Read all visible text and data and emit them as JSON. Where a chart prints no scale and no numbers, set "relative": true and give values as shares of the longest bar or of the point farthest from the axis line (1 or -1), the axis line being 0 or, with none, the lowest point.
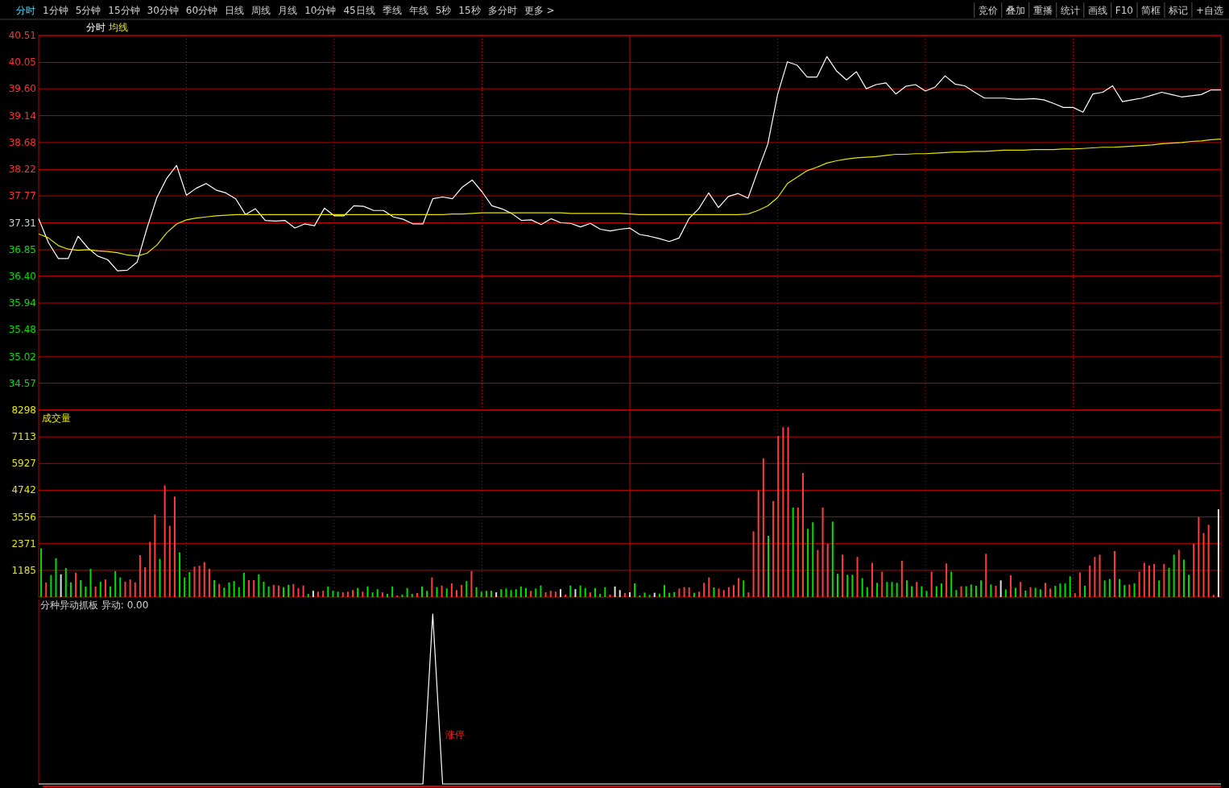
{
  "chart_data": [
    {
      "type": "line",
      "annotations": [
        "分时",
        "1分钟",
        "5分钟",
        "15分钟",
        "30分钟",
        "60分钟",
        "日线",
        "周线",
        "月线",
        "10分钟",
        "45日线",
        "季线",
        "年线",
        "5秒",
        "15秒",
        "多分时",
        "更多 >",
        "竞价",
        "叠加",
        "重播",
        "统计",
        "画线",
        "F10",
        "简框",
        "标记",
        "+自选"
      ],
      "categories": [
        null,
        null,
        null,
        null,
        null,
        null,
        null,
        null,
        null,
        null,
        null,
        null,
        null,
        null,
        null,
        null,
        null,
        null,
        null,
        null,
        null,
        null,
        null,
        null,
        null,
        null,
        null,
        null,
        null,
        null,
        null,
        null,
        null,
        null,
        null,
        null,
        null,
        null,
        null,
        null,
        null,
        null,
        null,
        null,
        null,
        null,
        null,
        null,
        null,
        null,
        null,
        null,
        null,
        null,
        null,
        null,
        null,
        null,
        null,
        null,
        null,
        null,
        null,
        null,
        null,
        null,
        null,
        null,
        null,
        null,
        null,
        null,
        null,
        null,
        null,
        null,
        null,
        null,
        null,
        null,
        null,
        null,
        null,
        null,
        null,
        null,
        null,
        null,
        null,
        null,
        null,
        null,
        null,
        null,
        null,
        null,
        null,
        null,
        null,
        null,
        null,
        null,
        null,
        null,
        null,
        null,
        null,
        null,
        null,
        null,
        null,
        null,
        null,
        null,
        null,
        null,
        null,
        null,
        null,
        null,
        null
      ],
      "ylim": [
        34.11,
        40.51
      ],
      "yticks": [
        34.57,
        35.02,
        35.48,
        35.94,
        {
          "value": 36.4,
          "label": "36.40"
        },
        36.85,
        37.31,
        37.77,
        38.22,
        38.68,
        39.14,
        {
          "value": 39.6,
          "label": "39.60"
        },
        40.05,
        40.51
      ],
      "grid": true,
      "tick_labels": "y",
      "series": [
        {
          "name": "分时",
          "color": "#ffffff",
          "values": [
            37.38,
            36.97,
            36.7,
            36.7,
            37.08,
            36.88,
            36.74,
            36.68,
            36.49,
            36.5,
            36.64,
            37.22,
            37.74,
            38.07,
            38.29,
            37.78,
            37.9,
            37.98,
            37.87,
            37.82,
            37.72,
            37.45,
            37.55,
            37.35,
            37.34,
            37.35,
            37.22,
            37.29,
            37.26,
            37.56,
            37.43,
            37.43,
            37.6,
            37.59,
            37.52,
            37.52,
            37.41,
            37.37,
            37.29,
            37.29,
            37.72,
            37.75,
            37.72,
            37.92,
            38.04,
            37.84,
            37.6,
            37.55,
            37.47,
            37.35,
            37.36,
            37.28,
            37.38,
            37.31,
            37.3,
            37.24,
            37.3,
            37.2,
            37.17,
            37.2,
            37.22,
            37.11,
            37.08,
            37.04,
            36.99,
            37.05,
            37.38,
            37.55,
            37.82,
            37.57,
            37.76,
            37.81,
            37.73,
            38.2,
            38.65,
            39.5,
            40.06,
            40.0,
            39.8,
            39.8,
            40.15,
            39.9,
            39.75,
            39.89,
            39.6,
            39.67,
            39.7,
            39.51,
            39.64,
            39.67,
            39.56,
            39.63,
            39.82,
            39.68,
            39.65,
            39.54,
            39.44,
            39.44,
            39.44,
            39.42,
            39.42,
            39.43,
            39.41,
            39.35,
            39.28,
            39.28,
            39.2,
            39.51,
            39.54,
            39.65,
            39.38,
            39.41,
            39.44,
            39.49,
            39.54,
            39.5,
            39.46,
            39.48,
            39.5,
            39.58,
            39.58
          ]
        },
        {
          "name": "均线",
          "color": "#e6e600",
          "values": [
            37.12,
            37.05,
            36.92,
            36.86,
            36.84,
            36.85,
            36.83,
            36.82,
            36.8,
            36.76,
            36.74,
            36.79,
            36.93,
            37.14,
            37.29,
            37.36,
            37.39,
            37.41,
            37.43,
            37.44,
            37.45,
            37.45,
            37.45,
            37.45,
            37.45,
            37.45,
            37.45,
            37.45,
            37.45,
            37.45,
            37.45,
            37.45,
            37.45,
            37.45,
            37.45,
            37.45,
            37.45,
            37.45,
            37.45,
            37.45,
            37.45,
            37.45,
            37.46,
            37.46,
            37.47,
            37.48,
            37.48,
            37.48,
            37.48,
            37.48,
            37.48,
            37.48,
            37.48,
            37.48,
            37.47,
            37.47,
            37.47,
            37.47,
            37.47,
            37.47,
            37.46,
            37.45,
            37.45,
            37.45,
            37.45,
            37.45,
            37.45,
            37.45,
            37.45,
            37.45,
            37.45,
            37.45,
            37.46,
            37.52,
            37.6,
            37.74,
            37.98,
            38.09,
            38.2,
            38.26,
            38.33,
            38.37,
            38.4,
            38.42,
            38.43,
            38.44,
            38.46,
            38.48,
            38.48,
            38.49,
            38.49,
            38.5,
            38.51,
            38.52,
            38.52,
            38.53,
            38.53,
            38.54,
            38.55,
            38.55,
            38.55,
            38.56,
            38.56,
            38.56,
            38.57,
            38.57,
            38.58,
            38.59,
            38.6,
            38.6,
            38.61,
            38.62,
            38.63,
            38.64,
            38.66,
            38.67,
            38.68,
            38.7,
            38.71,
            38.73,
            38.74
          ]
        }
      ]
    },
    {
      "type": "bar",
      "title": "成交量",
      "ylim": [
        0,
        8298
      ],
      "yticks": [
        1185,
        2371,
        3556,
        4742,
        5927,
        7113,
        8298
      ],
      "grid": true,
      "categories": [
        null,
        null,
        null,
        null,
        null,
        null,
        null,
        null,
        null,
        null,
        null,
        null,
        null,
        null,
        null,
        null,
        null,
        null,
        null,
        null,
        null,
        null,
        null,
        null,
        null,
        null,
        null,
        null,
        null,
        null,
        null,
        null,
        null,
        null,
        null,
        null,
        null,
        null,
        null,
        null,
        null,
        null,
        null,
        null,
        null,
        null,
        null,
        null,
        null,
        null,
        null,
        null,
        null,
        null,
        null,
        null,
        null,
        null,
        null,
        null,
        null,
        null,
        null,
        null,
        null,
        null,
        null,
        null,
        null,
        null,
        null,
        null,
        null,
        null,
        null,
        null,
        null,
        null,
        null,
        null,
        null,
        null,
        null,
        null,
        null,
        null,
        null,
        null,
        null,
        null,
        null,
        null,
        null,
        null,
        null,
        null,
        null,
        null,
        null,
        null,
        null,
        null,
        null,
        null,
        null,
        null,
        null,
        null,
        null,
        null,
        null,
        null,
        null,
        null,
        null,
        null,
        null,
        null,
        null,
        null,
        null,
        null,
        null,
        null,
        null,
        null,
        null,
        null,
        null,
        null,
        null,
        null,
        null,
        null,
        null,
        null,
        null,
        null,
        null,
        null,
        null,
        null,
        null,
        null,
        null,
        null,
        null,
        null,
        null,
        null,
        null,
        null,
        null,
        null,
        null,
        null,
        null,
        null,
        null,
        null,
        null,
        null,
        null,
        null,
        null,
        null,
        null,
        null,
        null,
        null,
        null,
        null,
        null,
        null,
        null,
        null,
        null,
        null,
        null,
        null,
        null,
        null,
        null,
        null,
        null,
        null,
        null,
        null,
        null,
        null,
        null,
        null,
        null,
        null,
        null,
        null,
        null,
        null,
        null,
        null,
        null,
        null,
        null,
        null,
        null,
        null,
        null,
        null,
        null,
        null,
        null,
        null,
        null,
        null,
        null,
        null,
        null,
        null,
        null,
        null,
        null,
        null,
        null,
        null,
        null,
        null,
        null,
        null,
        null,
        null,
        null,
        null,
        null,
        null,
        null,
        null,
        null,
        null,
        null
      ],
      "values": [
        2160,
        650,
        980,
        1720,
        1010,
        1290,
        650,
        1080,
        750,
        470,
        1250,
        470,
        680,
        780,
        470,
        1150,
        870,
        680,
        780,
        650,
        1860,
        1320,
        2450,
        3660,
        1690,
        4960,
        3160,
        4460,
        1980,
        870,
        1110,
        1350,
        1390,
        1550,
        1250,
        750,
        580,
        420,
        650,
        710,
        440,
        1080,
        750,
        750,
        1010,
        680,
        470,
        540,
        510,
        440,
        540,
        580,
        400,
        510,
        140,
        280,
        240,
        280,
        470,
        280,
        240,
        210,
        240,
        310,
        400,
        240,
        470,
        210,
        350,
        210,
        140,
        470,
        70,
        110,
        400,
        140,
        180,
        470,
        280,
        870,
        440,
        510,
        380,
        610,
        310,
        540,
        710,
        1150,
        440,
        240,
        280,
        280,
        210,
        350,
        380,
        310,
        350,
        470,
        400,
        280,
        380,
        510,
        210,
        280,
        240,
        350,
        110,
        510,
        350,
        510,
        400,
        210,
        400,
        140,
        440,
        110,
        470,
        310,
        180,
        210,
        610,
        70,
        200,
        100,
        190,
        150,
        530,
        190,
        220,
        380,
        440,
        430,
        190,
        240,
        630,
        870,
        430,
        380,
        310,
        440,
        530,
        840,
        740,
        210,
        2920,
        4740,
        6160,
        2720,
        4260,
        7150,
        7540,
        7540,
        3970,
        3970,
        5510,
        3030,
        3320,
        2090,
        3970,
        2360,
        3350,
        1030,
        1880,
        990,
        990,
        1780,
        840,
        440,
        1520,
        630,
        1130,
        670,
        670,
        630,
        1610,
        740,
        480,
        670,
        480,
        270,
        1130,
        480,
        600,
        1490,
        1130,
        310,
        480,
        480,
        560,
        500,
        740,
        1920,
        560,
        500,
        740,
        340,
        970,
        410,
        670,
        290,
        440,
        410,
        340,
        630,
        380,
        500,
        600,
        600,
        920,
        170,
        1090,
        500,
        1400,
        1780,
        1880,
        740,
        800,
        2040,
        800,
        530,
        560,
        600,
        1130,
        1520,
        1400,
        1470,
        740,
        1470,
        1300,
        1880,
        2100,
        1660,
        990,
        2360,
        3550,
        2840,
        3210,
        100,
        3900
      ],
      "colors": [
        "#00e000",
        "#ff3c3c",
        "#00e000",
        "#00e000",
        "#e0e0e0",
        "#00e000",
        "#00e000",
        "#ff3c3c",
        "#00e000",
        "#00e000",
        "#00e000",
        "#ff3c3c",
        "#00e000",
        "#ff3c3c",
        "#00e000",
        "#00e000",
        "#00e000",
        "#ff3c3c",
        "#ff3c3c",
        "#ff3c3c",
        "#ff3c3c",
        "#ff3c3c",
        "#ff3c3c",
        "#ff3c3c",
        "#00e000",
        "#ff3c3c",
        "#ff3c3c",
        "#ff3c3c",
        "#00e000",
        "#00e000",
        "#00e000",
        "#ff3c3c",
        "#ff3c3c",
        "#ff3c3c",
        "#ff3c3c",
        "#00e000",
        "#ff3c3c",
        "#00e000",
        "#00e000",
        "#00e000",
        "#00e000",
        "#00e000",
        "#ff3c3c",
        "#ff3c3c",
        "#00e000",
        "#00e000",
        "#00e000",
        "#ff3c3c",
        "#ff3c3c",
        "#00e000",
        "#00e000",
        "#ff3c3c",
        "#ff3c3c",
        "#ff3c3c",
        "#00e000",
        "#e0e0e0",
        "#ff3c3c",
        "#ff3c3c",
        "#00e000",
        "#00e000",
        "#00e000",
        "#ff3c3c",
        "#ff3c3c",
        "#ff3c3c",
        "#00e000",
        "#ff3c3c",
        "#00e000",
        "#00e000",
        "#00e000",
        "#ff3c3c",
        "#00e000",
        "#00e000",
        "#ff3c3c",
        "#00e000",
        "#00e000",
        "#00e000",
        "#ff3c3c",
        "#00e000",
        "#00e000",
        "#ff3c3c",
        "#00e000",
        "#ff3c3c",
        "#00e000",
        "#ff3c3c",
        "#ff3c3c",
        "#ff3c3c",
        "#00e000",
        "#ff3c3c",
        "#00e000",
        "#00e000",
        "#00e000",
        "#00e000",
        "#e0e0e0",
        "#00e000",
        "#00e000",
        "#00e000",
        "#00e000",
        "#00e000",
        "#00e000",
        "#ff3c3c",
        "#00e000",
        "#00e000",
        "#ff3c3c",
        "#ff3c3c",
        "#ff3c3c",
        "#e0e0e0",
        "#ff3c3c",
        "#00e000",
        "#e0e0e0",
        "#00e000",
        "#00e000",
        "#ff3c3c",
        "#00e000",
        "#00e000",
        "#00e000",
        "#ff3c3c",
        "#e0e0e0",
        "#e0e0e0",
        "#ff3c3c",
        "#e0e0e0",
        "#00e000",
        "#00e000",
        "#00e000",
        "#00e000",
        "#e0e0e0",
        "#00e000",
        "#00e000",
        "#00e000",
        "#00e000",
        "#ff3c3c",
        "#ff3c3c",
        "#ff3c3c",
        "#00e000",
        "#ff3c3c",
        "#ff3c3c",
        "#ff3c3c",
        "#00e000",
        "#ff3c3c",
        "#ff3c3c",
        "#ff3c3c",
        "#ff3c3c",
        "#ff3c3c",
        "#00e000",
        "#ff3c3c",
        "#ff3c3c",
        "#ff3c3c",
        "#ff3c3c",
        "#00e000",
        "#ff3c3c",
        "#ff3c3c",
        "#ff3c3c",
        "#ff3c3c",
        "#00e000",
        "#ff3c3c",
        "#ff3c3c",
        "#00e000",
        "#00e000",
        "#ff3c3c",
        "#ff3c3c",
        "#ff3c3c",
        "#00e000",
        "#00e000",
        "#ff3c3c",
        "#00e000",
        "#00e000",
        "#ff3c3c",
        "#00e000",
        "#00e000",
        "#ff3c3c",
        "#00e000",
        "#ff3c3c",
        "#00e000",
        "#00e000",
        "#00e000",
        "#ff3c3c",
        "#00e000",
        "#00e000",
        "#ff3c3c",
        "#00e000",
        "#00e000",
        "#ff3c3c",
        "#00e000",
        "#00e000",
        "#ff3c3c",
        "#00e000",
        "#00e000",
        "#ff3c3c",
        "#00e000",
        "#00e000",
        "#00e000",
        "#00e000",
        "#ff3c3c",
        "#00e000",
        "#ff3c3c",
        "#e0e0e0",
        "#00e000",
        "#ff3c3c",
        "#00e000",
        "#ff3c3c",
        "#00e000",
        "#ff3c3c",
        "#00e000",
        "#00e000",
        "#ff3c3c",
        "#ff3c3c",
        "#00e000",
        "#00e000",
        "#00e000",
        "#00e000",
        "#ff3c3c",
        "#ff3c3c",
        "#00e000",
        "#ff3c3c",
        "#ff3c3c",
        "#ff3c3c",
        "#00e000",
        "#00e000",
        "#ff3c3c",
        "#00e000",
        "#00e000",
        "#ff3c3c",
        "#00e000",
        "#ff3c3c",
        "#ff3c3c",
        "#ff3c3c",
        "#ff3c3c",
        "#00e000",
        "#ff3c3c",
        "#00e000",
        "#00e000",
        "#ff3c3c",
        "#00e000",
        "#00e000",
        "#ff3c3c",
        "#ff3c3c",
        "#ff3c3c",
        "#ff3c3c",
        "#ff3c3c",
        "#e0e0e0"
      ]
    },
    {
      "type": "line",
      "title": "分种异动抓板 异动: 0.00",
      "relative": true,
      "tick_labels": false,
      "annotations": [
        "涨停"
      ],
      "categories": [
        null,
        null,
        null,
        null,
        null,
        null,
        null,
        null,
        null,
        null,
        null,
        null,
        null,
        null,
        null,
        null,
        null,
        null,
        null,
        null,
        null,
        null,
        null,
        null,
        null,
        null,
        null,
        null,
        null,
        null,
        null,
        null,
        null,
        null,
        null,
        null,
        null,
        null,
        null,
        null,
        null,
        null,
        null,
        null,
        null,
        null,
        null,
        null,
        null,
        null,
        null,
        null,
        null,
        null,
        null,
        null,
        null,
        null,
        null,
        null,
        null,
        null,
        null,
        null,
        null,
        null,
        null,
        null,
        null,
        null,
        null,
        null,
        null,
        null,
        null,
        null,
        null,
        null,
        null,
        null,
        null,
        null,
        null,
        null,
        null,
        null,
        null,
        null,
        null,
        null,
        null,
        null,
        null,
        null,
        null,
        null,
        null,
        null,
        null,
        null,
        null,
        null,
        null,
        null,
        null,
        null,
        null,
        null,
        null,
        null,
        null,
        null,
        null,
        null,
        null,
        null,
        null,
        null,
        null,
        null,
        null
      ],
      "series": [
        {
          "color": "#ffffff",
          "values": [
            0,
            0,
            0,
            0,
            0,
            0,
            0,
            0,
            0,
            0,
            0,
            0,
            0,
            0,
            0,
            0,
            0,
            0,
            0,
            0,
            0,
            0,
            0,
            0,
            0,
            0,
            0,
            0,
            0,
            0,
            0,
            0,
            0,
            0,
            0,
            0,
            0,
            0,
            0,
            0,
            1,
            0,
            0,
            0,
            0,
            0,
            0,
            0,
            0,
            0,
            0,
            0,
            0,
            0,
            0,
            0,
            0,
            0,
            0,
            0,
            0,
            0,
            0,
            0,
            0,
            0,
            0,
            0,
            0,
            0,
            0,
            0,
            0,
            0,
            0,
            0,
            0,
            0,
            0,
            0,
            0,
            0,
            0,
            0,
            0,
            0,
            0,
            0,
            0,
            0,
            0,
            0,
            0,
            0,
            0,
            0,
            0,
            0,
            0,
            0,
            0,
            0,
            0,
            0,
            0,
            0,
            0,
            0,
            0,
            0,
            0,
            0,
            0,
            0,
            0,
            0,
            0,
            0,
            0,
            0,
            0
          ]
        }
      ]
    }
  ]
}
